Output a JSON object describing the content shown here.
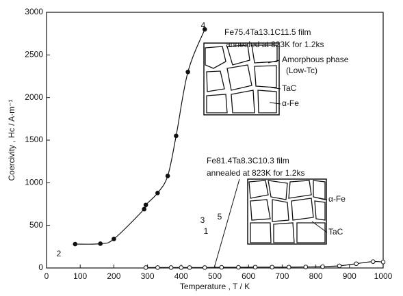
{
  "chart_data": {
    "type": "line",
    "x_label": "Temperature , T / K",
    "y_label": "Coercivity , Hc / A·m⁻¹",
    "xlim": [
      0,
      1000
    ],
    "xticks": [
      0,
      100,
      200,
      300,
      400,
      500,
      600,
      700,
      800,
      900,
      1000
    ],
    "ylim": [
      0,
      3000
    ],
    "yticks": [
      0,
      500,
      1000,
      1500,
      2000,
      2500,
      3000
    ],
    "series": [
      {
        "name": "Fe75.4Ta13.1C11.5 film",
        "marker": "filled",
        "color": "#111111",
        "x": [
          85,
          160,
          200,
          290,
          295,
          330,
          360,
          385,
          420,
          470
        ],
        "values": [
          280,
          285,
          340,
          690,
          740,
          880,
          1080,
          1550,
          2300,
          2800
        ]
      },
      {
        "name": "Fe81.4Ta8.3C10.3 film",
        "marker": "open",
        "color": "#111111",
        "x": [
          295,
          330,
          370,
          400,
          425,
          470,
          520,
          570,
          620,
          670,
          720,
          770,
          820,
          870,
          920,
          970,
          1000
        ],
        "values": [
          5,
          5,
          5,
          5,
          5,
          5,
          8,
          8,
          10,
          10,
          10,
          12,
          15,
          25,
          50,
          75,
          70
        ]
      }
    ],
    "annotations": [
      "annealed at 823K for 1.2ks",
      "annealed at 823K for 1.2ks",
      "1",
      "2",
      "3",
      "4",
      "5"
    ],
    "inset_labels": [
      "Amorphous phase",
      "(Low-Tc)",
      "TaC",
      "α-Fe",
      "α-Fe",
      "TaC"
    ]
  }
}
